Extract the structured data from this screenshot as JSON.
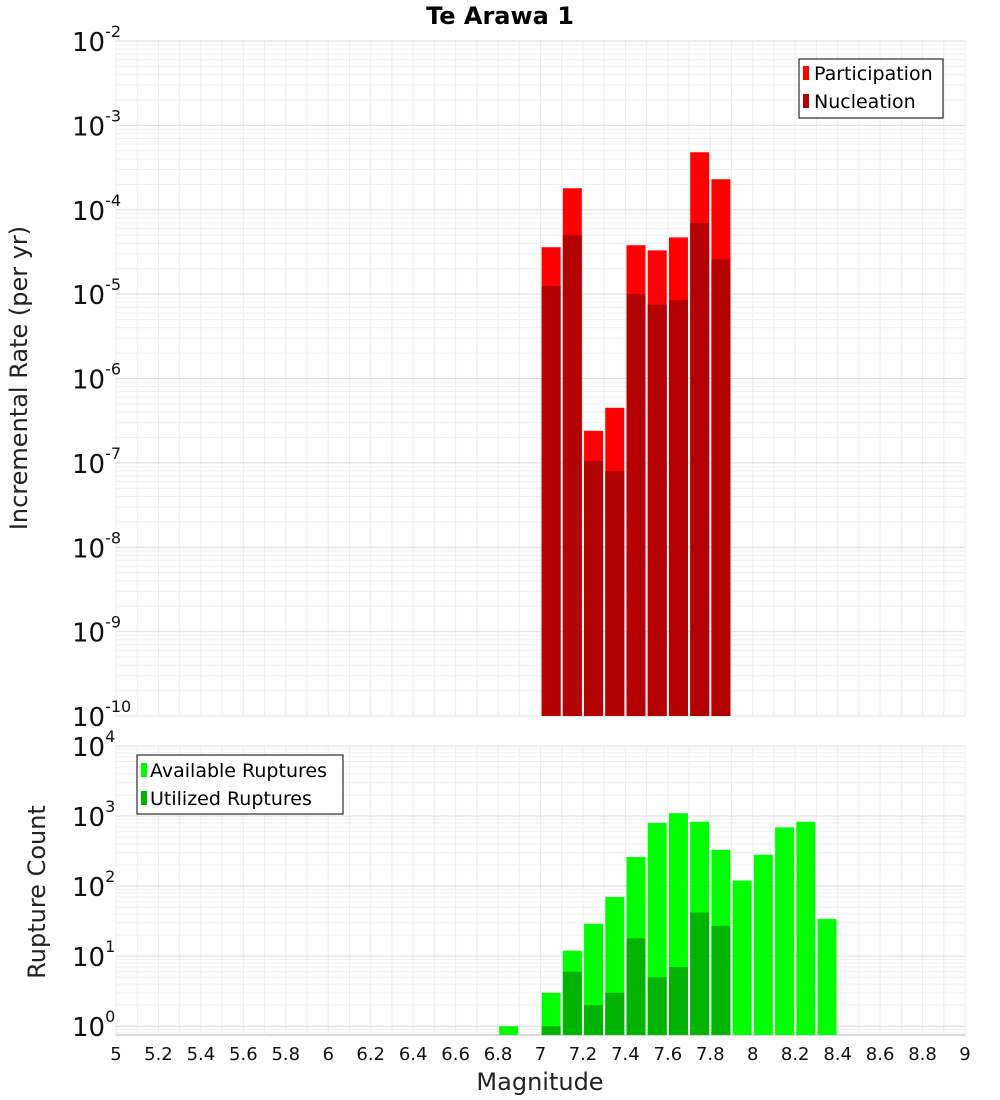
{
  "chart_data": [
    {
      "type": "bar",
      "title": "Te Arawa 1",
      "xlabel": "",
      "ylabel": "Incremental Rate (per yr)",
      "yscale": "log",
      "ylim": [
        1e-10,
        0.01
      ],
      "xlim": [
        5,
        9
      ],
      "grid": true,
      "legend_position": "top-right",
      "x": [
        7.05,
        7.15,
        7.25,
        7.35,
        7.45,
        7.55,
        7.65,
        7.75,
        7.85
      ],
      "series": [
        {
          "name": "Participation",
          "color": "#ff0000",
          "values": [
            3.6e-05,
            0.00018,
            2.4e-07,
            4.5e-07,
            3.8e-05,
            3.3e-05,
            4.7e-05,
            0.00048,
            0.00023
          ]
        },
        {
          "name": "Nucleation",
          "color": "#b30000",
          "values": [
            1.25e-05,
            5e-05,
            1.05e-07,
            8e-08,
            1e-05,
            7.5e-06,
            8.5e-06,
            7e-05,
            2.6e-05
          ]
        }
      ],
      "y_ticks": [
        {
          "base": "10",
          "exp": "-10"
        },
        {
          "base": "10",
          "exp": "-9"
        },
        {
          "base": "10",
          "exp": "-8"
        },
        {
          "base": "10",
          "exp": "-7"
        },
        {
          "base": "10",
          "exp": "-6"
        },
        {
          "base": "10",
          "exp": "-5"
        },
        {
          "base": "10",
          "exp": "-4"
        },
        {
          "base": "10",
          "exp": "-3"
        },
        {
          "base": "10",
          "exp": "-2"
        }
      ]
    },
    {
      "type": "bar",
      "title": "",
      "xlabel": "Magnitude",
      "ylabel": "Rupture Count",
      "yscale": "log",
      "ylim": [
        0.75,
        10000
      ],
      "xlim": [
        5,
        9
      ],
      "grid": true,
      "legend_position": "top-left",
      "x": [
        6.85,
        7.05,
        7.15,
        7.25,
        7.35,
        7.45,
        7.55,
        7.65,
        7.75,
        7.85,
        7.95,
        8.05,
        8.15,
        8.25,
        8.35
      ],
      "series": [
        {
          "name": "Available Ruptures",
          "color": "#00ff00",
          "values": [
            1,
            3,
            12,
            29,
            70,
            260,
            800,
            1100,
            830,
            330,
            120,
            280,
            690,
            830,
            34
          ]
        },
        {
          "name": "Utilized Ruptures",
          "color": "#00b300",
          "values": [
            0,
            1,
            6,
            2,
            3,
            18,
            5,
            7,
            42,
            27,
            0,
            0,
            0,
            0,
            0
          ]
        }
      ],
      "y_ticks": [
        {
          "base": "10",
          "exp": "0"
        },
        {
          "base": "10",
          "exp": "1"
        },
        {
          "base": "10",
          "exp": "2"
        },
        {
          "base": "10",
          "exp": "3"
        },
        {
          "base": "10",
          "exp": "4"
        }
      ],
      "x_tick_labels": [
        "5",
        "5.2",
        "5.4",
        "5.6",
        "5.8",
        "6",
        "6.2",
        "6.4",
        "6.6",
        "6.8",
        "7",
        "7.2",
        "7.4",
        "7.6",
        "7.8",
        "8",
        "8.2",
        "8.4",
        "8.6",
        "8.8",
        "9"
      ]
    }
  ]
}
